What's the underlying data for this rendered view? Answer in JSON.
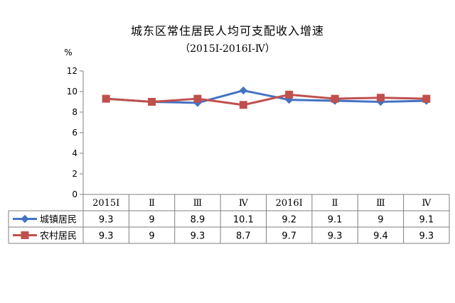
{
  "chart_data": {
    "type": "line",
    "title": "城东区常住居民人均可支配收入增速",
    "subtitle": "（2015Ⅰ-2016Ⅰ-Ⅳ）",
    "ylabel": "%",
    "ylim": [
      0,
      12
    ],
    "yticks": [
      "0",
      "2",
      "4",
      "6",
      "8",
      "10",
      "12"
    ],
    "categories": [
      "2015Ⅰ",
      "Ⅱ",
      "Ⅲ",
      "Ⅳ",
      "2016Ⅰ",
      "Ⅱ",
      "Ⅲ",
      "Ⅳ"
    ],
    "grid": false,
    "legend": "table-left",
    "series": [
      {
        "name": "城镇居民",
        "color": "#4472C4",
        "marker": "diamond",
        "values": [
          9.3,
          9,
          8.9,
          10.1,
          9.2,
          9.1,
          9,
          9.1
        ],
        "labels": [
          "9.3",
          "9",
          "8.9",
          "10.1",
          "9.2",
          "9.1",
          "9",
          "9.1"
        ]
      },
      {
        "name": "农村居民",
        "color": "#C0504D",
        "marker": "square",
        "values": [
          9.3,
          9,
          9.3,
          8.7,
          9.7,
          9.3,
          9.4,
          9.3
        ],
        "labels": [
          "9.3",
          "9",
          "9.3",
          "8.7",
          "9.7",
          "9.3",
          "9.4",
          "9.3"
        ]
      }
    ]
  }
}
